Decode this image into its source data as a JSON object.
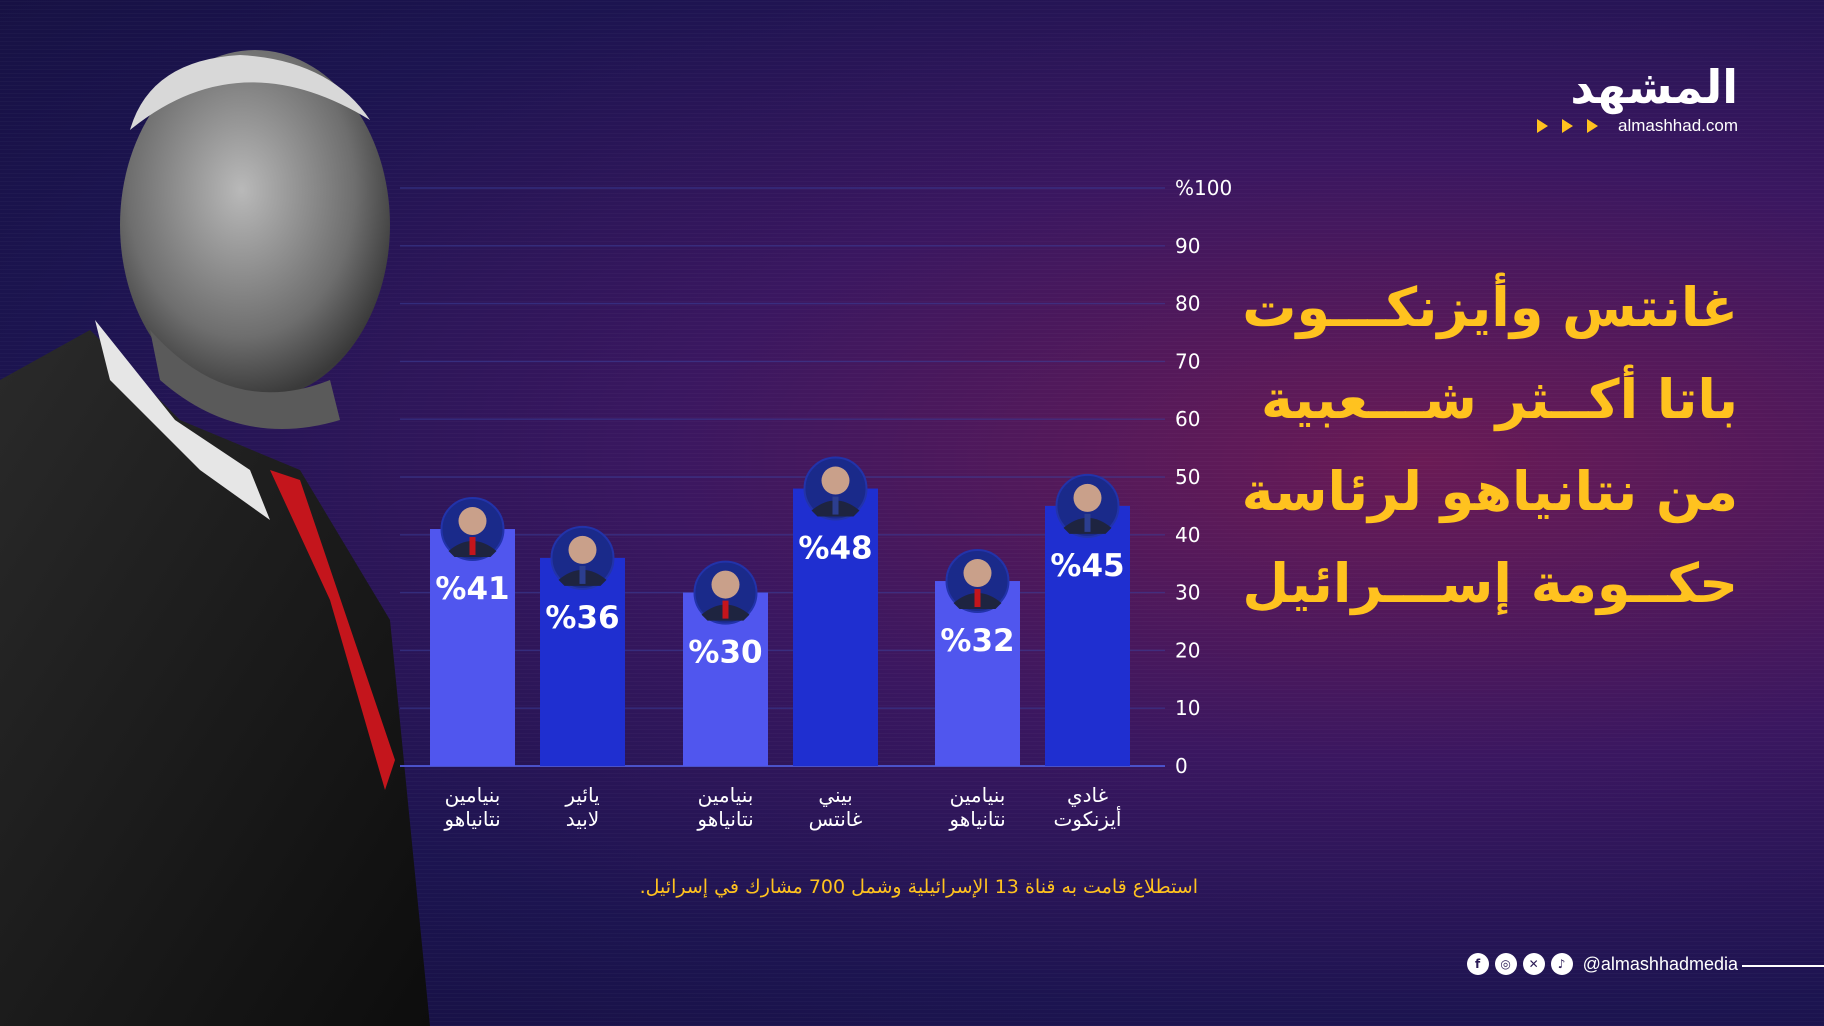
{
  "headline": {
    "lines": [
      "غانتس وأيزنكـــوت",
      "باتا أكــثر شـــعبية",
      "من نتانياهو لرئاسة",
      "حكــومة إســـرائيل"
    ]
  },
  "logo": {
    "wordmark": "المشهد",
    "domain": "almashhad.com"
  },
  "footnote": "استطلاع قامت به قناة 13 الإسرائيلية وشمل 700 مشارك في إسرائيل.",
  "social": {
    "handle": "@almashhadmedia",
    "icons": [
      "facebook-icon",
      "instagram-icon",
      "x-icon",
      "tiktok-icon"
    ]
  },
  "colors": {
    "background": "#1c1450",
    "accent": "#ffc21f",
    "bar_light": "#5056ee",
    "bar_dark": "#1f2fd0"
  },
  "chart_data": {
    "type": "bar",
    "ylim": [
      0,
      100
    ],
    "y_ticks": [
      "0",
      "10",
      "20",
      "30",
      "40",
      "50",
      "60",
      "70",
      "80",
      "90",
      "%100"
    ],
    "grid": true,
    "groups": [
      {
        "bars": [
          {
            "label": [
              "بنيامين",
              "نتانياهو"
            ],
            "value": 41,
            "value_label": "%41",
            "color": "light",
            "avatar": "netanyahu-avatar"
          },
          {
            "label": [
              "يائير",
              "لابيد"
            ],
            "value": 36,
            "value_label": "%36",
            "color": "dark",
            "avatar": "lapid-avatar"
          }
        ]
      },
      {
        "bars": [
          {
            "label": [
              "بنيامين",
              "نتانياهو"
            ],
            "value": 30,
            "value_label": "%30",
            "color": "light",
            "avatar": "netanyahu-avatar"
          },
          {
            "label": [
              "بيني",
              "غانتس"
            ],
            "value": 48,
            "value_label": "%48",
            "color": "dark",
            "avatar": "gantz-avatar"
          }
        ]
      },
      {
        "bars": [
          {
            "label": [
              "بنيامين",
              "نتانياهو"
            ],
            "value": 32,
            "value_label": "%32",
            "color": "light",
            "avatar": "netanyahu-avatar"
          },
          {
            "label": [
              "غادي",
              "أيزنكوت"
            ],
            "value": 45,
            "value_label": "%45",
            "color": "dark",
            "avatar": "eisenkot-avatar"
          }
        ]
      }
    ]
  }
}
